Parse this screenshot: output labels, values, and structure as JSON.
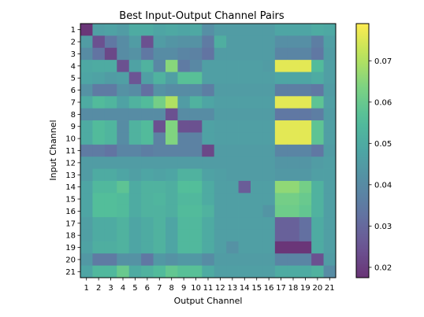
{
  "chart_data": {
    "type": "heatmap",
    "title": "Best Input-Output Channel Pairs",
    "xlabel": "Output Channel",
    "ylabel": "Input Channel",
    "x_categories": [
      "1",
      "2",
      "3",
      "4",
      "5",
      "6",
      "7",
      "8",
      "9",
      "10",
      "11",
      "12",
      "13",
      "14",
      "15",
      "16",
      "17",
      "18",
      "19",
      "20",
      "21"
    ],
    "y_categories": [
      "1",
      "2",
      "3",
      "4",
      "5",
      "6",
      "7",
      "8",
      "9",
      "10",
      "11",
      "12",
      "13",
      "14",
      "15",
      "16",
      "17",
      "18",
      "19",
      "20",
      "21"
    ],
    "colorbar": {
      "colormap": "viridis",
      "alpha": 0.8,
      "vmin": 0.0175,
      "vmax": 0.079,
      "ticks": [
        0.02,
        0.03,
        0.04,
        0.05,
        0.06,
        0.07
      ],
      "tick_labels": [
        "0.02",
        "0.03",
        "0.04",
        "0.05",
        "0.06",
        "0.07"
      ]
    },
    "values": [
      [
        0.018,
        0.046,
        0.047,
        0.045,
        0.05,
        0.05,
        0.048,
        0.049,
        0.048,
        0.049,
        0.041,
        0.045,
        0.045,
        0.045,
        0.045,
        0.045,
        0.048,
        0.048,
        0.048,
        0.05,
        0.049
      ],
      [
        0.045,
        0.024,
        0.034,
        0.04,
        0.045,
        0.024,
        0.045,
        0.043,
        0.042,
        0.042,
        0.035,
        0.051,
        0.045,
        0.045,
        0.045,
        0.045,
        0.041,
        0.041,
        0.041,
        0.036,
        0.046
      ],
      [
        0.04,
        0.033,
        0.022,
        0.04,
        0.042,
        0.034,
        0.04,
        0.04,
        0.038,
        0.037,
        0.033,
        0.045,
        0.045,
        0.045,
        0.045,
        0.045,
        0.038,
        0.038,
        0.038,
        0.034,
        0.045
      ],
      [
        0.049,
        0.05,
        0.05,
        0.024,
        0.047,
        0.052,
        0.039,
        0.065,
        0.035,
        0.039,
        0.046,
        0.046,
        0.046,
        0.046,
        0.046,
        0.045,
        0.076,
        0.076,
        0.076,
        0.055,
        0.046
      ],
      [
        0.048,
        0.047,
        0.045,
        0.046,
        0.025,
        0.046,
        0.052,
        0.046,
        0.057,
        0.057,
        0.046,
        0.046,
        0.046,
        0.046,
        0.046,
        0.046,
        0.048,
        0.048,
        0.048,
        0.05,
        0.046
      ],
      [
        0.042,
        0.035,
        0.035,
        0.042,
        0.04,
        0.032,
        0.042,
        0.04,
        0.04,
        0.04,
        0.036,
        0.045,
        0.045,
        0.045,
        0.045,
        0.045,
        0.036,
        0.036,
        0.036,
        0.034,
        0.045
      ],
      [
        0.05,
        0.055,
        0.053,
        0.047,
        0.052,
        0.055,
        0.062,
        0.07,
        0.045,
        0.052,
        0.048,
        0.046,
        0.046,
        0.046,
        0.046,
        0.046,
        0.076,
        0.076,
        0.076,
        0.058,
        0.046
      ],
      [
        0.04,
        0.04,
        0.04,
        0.04,
        0.04,
        0.04,
        0.04,
        0.024,
        0.04,
        0.04,
        0.04,
        0.045,
        0.045,
        0.045,
        0.045,
        0.045,
        0.034,
        0.034,
        0.034,
        0.036,
        0.045
      ],
      [
        0.05,
        0.055,
        0.053,
        0.04,
        0.052,
        0.055,
        0.024,
        0.064,
        0.024,
        0.024,
        0.047,
        0.046,
        0.046,
        0.046,
        0.046,
        0.046,
        0.076,
        0.076,
        0.076,
        0.058,
        0.046
      ],
      [
        0.05,
        0.055,
        0.053,
        0.04,
        0.052,
        0.055,
        0.037,
        0.064,
        0.037,
        0.037,
        0.047,
        0.046,
        0.046,
        0.046,
        0.046,
        0.046,
        0.076,
        0.076,
        0.076,
        0.058,
        0.046
      ],
      [
        0.035,
        0.035,
        0.033,
        0.038,
        0.038,
        0.036,
        0.037,
        0.037,
        0.037,
        0.037,
        0.022,
        0.045,
        0.045,
        0.045,
        0.045,
        0.045,
        0.038,
        0.038,
        0.038,
        0.034,
        0.045
      ],
      [
        0.045,
        0.045,
        0.045,
        0.045,
        0.045,
        0.045,
        0.045,
        0.045,
        0.045,
        0.045,
        0.045,
        0.045,
        0.045,
        0.045,
        0.045,
        0.045,
        0.043,
        0.043,
        0.043,
        0.045,
        0.046
      ],
      [
        0.045,
        0.05,
        0.05,
        0.048,
        0.046,
        0.048,
        0.047,
        0.048,
        0.052,
        0.052,
        0.047,
        0.046,
        0.045,
        0.045,
        0.045,
        0.045,
        0.044,
        0.044,
        0.044,
        0.046,
        0.046
      ],
      [
        0.048,
        0.054,
        0.054,
        0.058,
        0.05,
        0.052,
        0.052,
        0.051,
        0.056,
        0.056,
        0.05,
        0.046,
        0.046,
        0.027,
        0.046,
        0.046,
        0.066,
        0.066,
        0.062,
        0.052,
        0.046
      ],
      [
        0.048,
        0.056,
        0.056,
        0.055,
        0.05,
        0.052,
        0.053,
        0.051,
        0.054,
        0.054,
        0.05,
        0.046,
        0.046,
        0.046,
        0.046,
        0.046,
        0.062,
        0.062,
        0.06,
        0.052,
        0.046
      ],
      [
        0.048,
        0.056,
        0.056,
        0.055,
        0.05,
        0.052,
        0.052,
        0.051,
        0.055,
        0.055,
        0.052,
        0.046,
        0.046,
        0.046,
        0.046,
        0.043,
        0.061,
        0.061,
        0.059,
        0.052,
        0.046
      ],
      [
        0.046,
        0.05,
        0.05,
        0.052,
        0.048,
        0.05,
        0.052,
        0.048,
        0.054,
        0.054,
        0.05,
        0.046,
        0.046,
        0.046,
        0.046,
        0.046,
        0.028,
        0.028,
        0.032,
        0.05,
        0.046
      ],
      [
        0.046,
        0.05,
        0.05,
        0.052,
        0.048,
        0.05,
        0.052,
        0.048,
        0.054,
        0.054,
        0.05,
        0.046,
        0.046,
        0.046,
        0.046,
        0.046,
        0.028,
        0.028,
        0.032,
        0.05,
        0.046
      ],
      [
        0.047,
        0.051,
        0.051,
        0.052,
        0.048,
        0.05,
        0.052,
        0.048,
        0.054,
        0.054,
        0.05,
        0.046,
        0.042,
        0.046,
        0.046,
        0.046,
        0.018,
        0.018,
        0.018,
        0.05,
        0.046
      ],
      [
        0.044,
        0.035,
        0.035,
        0.042,
        0.042,
        0.034,
        0.044,
        0.042,
        0.044,
        0.044,
        0.04,
        0.045,
        0.045,
        0.045,
        0.045,
        0.045,
        0.038,
        0.038,
        0.038,
        0.024,
        0.045
      ],
      [
        0.048,
        0.054,
        0.054,
        0.06,
        0.05,
        0.052,
        0.055,
        0.059,
        0.057,
        0.057,
        0.05,
        0.046,
        0.046,
        0.046,
        0.046,
        0.046,
        0.05,
        0.05,
        0.05,
        0.052,
        0.04
      ]
    ]
  }
}
